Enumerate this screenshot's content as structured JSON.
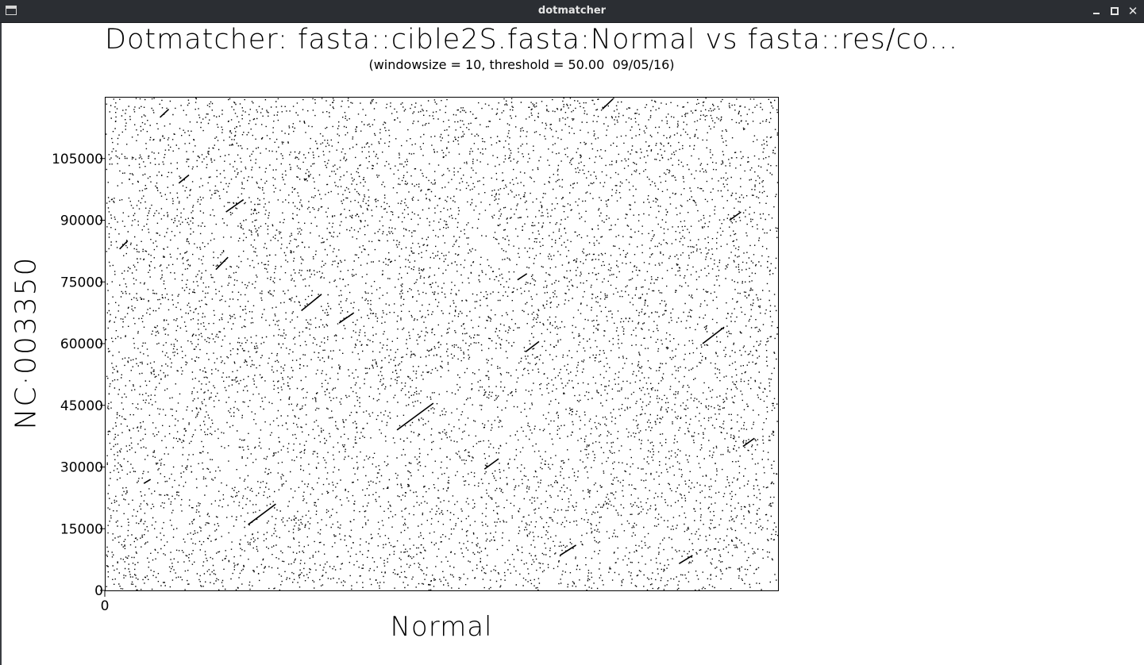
{
  "window": {
    "title": "dotmatcher"
  },
  "chart_data": {
    "type": "scatter",
    "title": "Dotmatcher: fasta::cible2S.fasta:Normal vs fasta::res/co...",
    "subtitle": "(windowsize = 10, threshold = 50.00  09/05/16)",
    "xlabel": "Normal",
    "ylabel": "NC·003350",
    "x_ticks": [
      "0"
    ],
    "y_ticks": [
      "0",
      "15000",
      "30000",
      "45000",
      "60000",
      "75000",
      "90000",
      "105000"
    ],
    "ylim": [
      0,
      120000
    ],
    "grid": false,
    "legend": "none",
    "background_dots": "dense random match points across the full plot",
    "diagonal_segments": [
      {
        "x_frac": [
          0.022,
          0.034
        ],
        "y": [
          83000,
          85000
        ]
      },
      {
        "x_frac": [
          0.058,
          0.068
        ],
        "y": [
          26000,
          27000
        ]
      },
      {
        "x_frac": [
          0.082,
          0.095
        ],
        "y": [
          115000,
          117000
        ]
      },
      {
        "x_frac": [
          0.11,
          0.125
        ],
        "y": [
          99000,
          101000
        ]
      },
      {
        "x_frac": [
          0.165,
          0.183
        ],
        "y": [
          78000,
          81000
        ]
      },
      {
        "x_frac": [
          0.18,
          0.206
        ],
        "y": [
          92000,
          95000
        ]
      },
      {
        "x_frac": [
          0.213,
          0.254
        ],
        "y": [
          16000,
          21000
        ]
      },
      {
        "x_frac": [
          0.292,
          0.322
        ],
        "y": [
          68000,
          72000
        ]
      },
      {
        "x_frac": [
          0.348,
          0.37
        ],
        "y": [
          65000,
          67500
        ]
      },
      {
        "x_frac": [
          0.434,
          0.488
        ],
        "y": [
          39000,
          45500
        ]
      },
      {
        "x_frac": [
          0.564,
          0.585
        ],
        "y": [
          29500,
          32000
        ]
      },
      {
        "x_frac": [
          0.613,
          0.627
        ],
        "y": [
          75500,
          77000
        ]
      },
      {
        "x_frac": [
          0.625,
          0.645
        ],
        "y": [
          58000,
          60500
        ]
      },
      {
        "x_frac": [
          0.676,
          0.7
        ],
        "y": [
          8500,
          11000
        ]
      },
      {
        "x_frac": [
          0.739,
          0.755
        ],
        "y": [
          117000,
          119500
        ]
      },
      {
        "x_frac": [
          0.853,
          0.873
        ],
        "y": [
          6500,
          8500
        ]
      },
      {
        "x_frac": [
          0.888,
          0.92
        ],
        "y": [
          60000,
          64000
        ]
      },
      {
        "x_frac": [
          0.928,
          0.945
        ],
        "y": [
          90000,
          92000
        ]
      },
      {
        "x_frac": [
          0.948,
          0.965
        ],
        "y": [
          35000,
          37000
        ]
      }
    ]
  }
}
